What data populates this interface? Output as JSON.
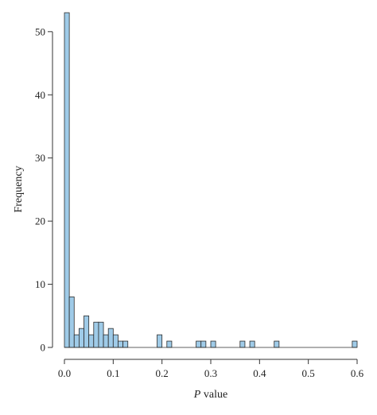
{
  "chart_data": {
    "type": "bar",
    "xlabel_italic": "P",
    "xlabel_rest": " value",
    "ylabel": "Frequency",
    "xlim": [
      0,
      0.6
    ],
    "ylim": [
      0,
      53
    ],
    "bin_width": 0.01,
    "bins": [
      {
        "x0": 0.0,
        "value": 53
      },
      {
        "x0": 0.01,
        "value": 8
      },
      {
        "x0": 0.02,
        "value": 2
      },
      {
        "x0": 0.03,
        "value": 3
      },
      {
        "x0": 0.04,
        "value": 5
      },
      {
        "x0": 0.05,
        "value": 2
      },
      {
        "x0": 0.06,
        "value": 4
      },
      {
        "x0": 0.07,
        "value": 4
      },
      {
        "x0": 0.08,
        "value": 2
      },
      {
        "x0": 0.09,
        "value": 3
      },
      {
        "x0": 0.1,
        "value": 2
      },
      {
        "x0": 0.11,
        "value": 1
      },
      {
        "x0": 0.12,
        "value": 1
      },
      {
        "x0": 0.19,
        "value": 2
      },
      {
        "x0": 0.21,
        "value": 1
      },
      {
        "x0": 0.27,
        "value": 1
      },
      {
        "x0": 0.28,
        "value": 1
      },
      {
        "x0": 0.3,
        "value": 1
      },
      {
        "x0": 0.36,
        "value": 1
      },
      {
        "x0": 0.38,
        "value": 1
      },
      {
        "x0": 0.43,
        "value": 1
      },
      {
        "x0": 0.59,
        "value": 1
      }
    ],
    "x_ticks": [
      0.0,
      0.1,
      0.2,
      0.3,
      0.4,
      0.5,
      0.6
    ],
    "x_tick_labels": [
      "0.0",
      "0.1",
      "0.2",
      "0.3",
      "0.4",
      "0.5",
      "0.6"
    ],
    "y_ticks": [
      0,
      10,
      20,
      30,
      40,
      50
    ],
    "y_tick_labels": [
      "0",
      "10",
      "20",
      "30",
      "40",
      "50"
    ],
    "grid": false,
    "colors": {
      "bar_fill": "#9fcbe8",
      "bar_stroke": "#2b2b2b",
      "axis": "#333333"
    }
  }
}
